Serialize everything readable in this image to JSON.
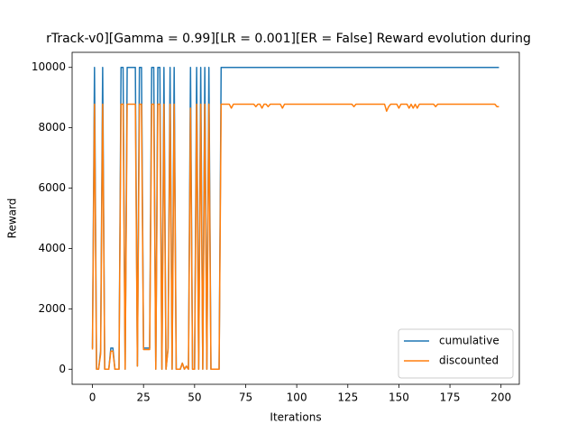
{
  "chart_data": {
    "type": "line",
    "title": "rTrack-v0][Gamma = 0.99][LR = 0.001][ER = False] Reward evolution during",
    "x_label": "Iterations",
    "y_label": "Reward",
    "x": [
      0,
      1,
      2,
      3,
      4,
      5,
      6,
      7,
      8,
      9,
      10,
      11,
      12,
      13,
      14,
      15,
      16,
      17,
      18,
      19,
      20,
      21,
      22,
      23,
      24,
      25,
      26,
      27,
      28,
      29,
      30,
      31,
      32,
      33,
      34,
      35,
      36,
      37,
      38,
      39,
      40,
      41,
      42,
      43,
      44,
      45,
      46,
      47,
      48,
      49,
      50,
      51,
      52,
      53,
      54,
      55,
      56,
      57,
      58,
      59,
      60,
      61,
      62,
      63,
      64,
      65,
      66,
      67,
      68,
      69,
      70,
      71,
      72,
      73,
      74,
      75,
      76,
      77,
      78,
      79,
      80,
      81,
      82,
      83,
      84,
      85,
      86,
      87,
      88,
      89,
      90,
      91,
      92,
      93,
      94,
      95,
      96,
      97,
      98,
      99,
      100,
      101,
      102,
      103,
      104,
      105,
      106,
      107,
      108,
      109,
      110,
      111,
      112,
      113,
      114,
      115,
      116,
      117,
      118,
      119,
      120,
      121,
      122,
      123,
      124,
      125,
      126,
      127,
      128,
      129,
      130,
      131,
      132,
      133,
      134,
      135,
      136,
      137,
      138,
      139,
      140,
      141,
      142,
      143,
      144,
      145,
      146,
      147,
      148,
      149,
      150,
      151,
      152,
      153,
      154,
      155,
      156,
      157,
      158,
      159,
      160,
      161,
      162,
      163,
      164,
      165,
      166,
      167,
      168,
      169,
      170,
      171,
      172,
      173,
      174,
      175,
      176,
      177,
      178,
      179,
      180,
      181,
      182,
      183,
      184,
      185,
      186,
      187,
      188,
      189,
      190,
      191,
      192,
      193,
      194,
      195,
      196,
      197,
      198,
      199
    ],
    "series": [
      {
        "name": "cumulative",
        "color": "#1f77b4",
        "values": [
          700,
          10000,
          0,
          0,
          600,
          10000,
          0,
          0,
          0,
          700,
          700,
          0,
          0,
          0,
          10000,
          10000,
          0,
          10000,
          10000,
          10000,
          10000,
          10000,
          100,
          10000,
          10000,
          700,
          700,
          700,
          700,
          10000,
          10000,
          0,
          10000,
          10000,
          0,
          10000,
          0,
          700,
          10000,
          0,
          10000,
          0,
          0,
          0,
          200,
          0,
          100,
          0,
          10000,
          0,
          0,
          10000,
          0,
          10000,
          0,
          10000,
          0,
          10000,
          0,
          0,
          0,
          0,
          0,
          10000,
          10000,
          10000,
          10000,
          10000,
          10000,
          10000,
          10000,
          10000,
          10000,
          10000,
          10000,
          10000,
          10000,
          10000,
          10000,
          10000,
          10000,
          10000,
          10000,
          10000,
          10000,
          10000,
          10000,
          10000,
          10000,
          10000,
          10000,
          10000,
          10000,
          10000,
          10000,
          10000,
          10000,
          10000,
          10000,
          10000,
          10000,
          10000,
          10000,
          10000,
          10000,
          10000,
          10000,
          10000,
          10000,
          10000,
          10000,
          10000,
          10000,
          10000,
          10000,
          10000,
          10000,
          10000,
          10000,
          10000,
          10000,
          10000,
          10000,
          10000,
          10000,
          10000,
          10000,
          10000,
          10000,
          10000,
          10000,
          10000,
          10000,
          10000,
          10000,
          10000,
          10000,
          10000,
          10000,
          10000,
          10000,
          10000,
          10000,
          10000,
          10000,
          10000,
          10000,
          10000,
          10000,
          10000,
          10000,
          10000,
          10000,
          10000,
          10000,
          10000,
          10000,
          10000,
          10000,
          10000,
          10000,
          10000,
          10000,
          10000,
          10000,
          10000,
          10000,
          10000,
          10000,
          10000,
          10000,
          10000,
          10000,
          10000,
          10000,
          10000,
          10000,
          10000,
          10000,
          10000,
          10000,
          10000,
          10000,
          10000,
          10000,
          10000,
          10000,
          10000,
          10000,
          10000,
          10000,
          10000,
          10000,
          10000,
          10000,
          10000,
          10000,
          10000,
          10000,
          10000
        ]
      },
      {
        "name": "discounted",
        "color": "#ff7f0e",
        "values": [
          650,
          8780,
          0,
          0,
          500,
          8780,
          0,
          0,
          0,
          600,
          600,
          0,
          0,
          0,
          8780,
          8780,
          0,
          8780,
          8780,
          8780,
          8780,
          8780,
          100,
          8780,
          8780,
          650,
          650,
          650,
          650,
          8780,
          8780,
          0,
          8780,
          8780,
          0,
          8780,
          0,
          650,
          8780,
          0,
          8780,
          0,
          0,
          0,
          200,
          0,
          100,
          0,
          8650,
          0,
          0,
          8780,
          0,
          8780,
          0,
          8780,
          0,
          8780,
          0,
          0,
          0,
          0,
          0,
          8780,
          8780,
          8780,
          8780,
          8780,
          8650,
          8780,
          8780,
          8780,
          8780,
          8780,
          8780,
          8780,
          8780,
          8780,
          8780,
          8780,
          8700,
          8780,
          8780,
          8650,
          8780,
          8780,
          8700,
          8780,
          8780,
          8780,
          8780,
          8780,
          8780,
          8650,
          8780,
          8780,
          8780,
          8780,
          8780,
          8780,
          8780,
          8780,
          8780,
          8780,
          8780,
          8780,
          8780,
          8780,
          8780,
          8780,
          8780,
          8780,
          8780,
          8780,
          8780,
          8780,
          8780,
          8780,
          8780,
          8780,
          8780,
          8780,
          8780,
          8780,
          8780,
          8780,
          8780,
          8780,
          8700,
          8780,
          8780,
          8780,
          8780,
          8780,
          8780,
          8780,
          8780,
          8780,
          8780,
          8780,
          8780,
          8780,
          8780,
          8780,
          8550,
          8700,
          8780,
          8780,
          8780,
          8780,
          8650,
          8780,
          8780,
          8780,
          8780,
          8650,
          8780,
          8650,
          8780,
          8650,
          8780,
          8780,
          8780,
          8780,
          8780,
          8780,
          8780,
          8780,
          8700,
          8780,
          8780,
          8780,
          8780,
          8780,
          8780,
          8780,
          8780,
          8780,
          8780,
          8780,
          8780,
          8780,
          8780,
          8780,
          8780,
          8780,
          8780,
          8780,
          8780,
          8780,
          8780,
          8780,
          8780,
          8780,
          8780,
          8780,
          8780,
          8780,
          8700,
          8700
        ]
      }
    ],
    "xlim": [
      -9.95,
      208.95
    ],
    "ylim": [
      -500,
      10500
    ],
    "xticks": [
      0,
      25,
      50,
      75,
      100,
      125,
      150,
      175,
      200
    ],
    "yticks": [
      0,
      2000,
      4000,
      6000,
      8000,
      10000
    ],
    "grid": false,
    "legend": "lower right"
  }
}
